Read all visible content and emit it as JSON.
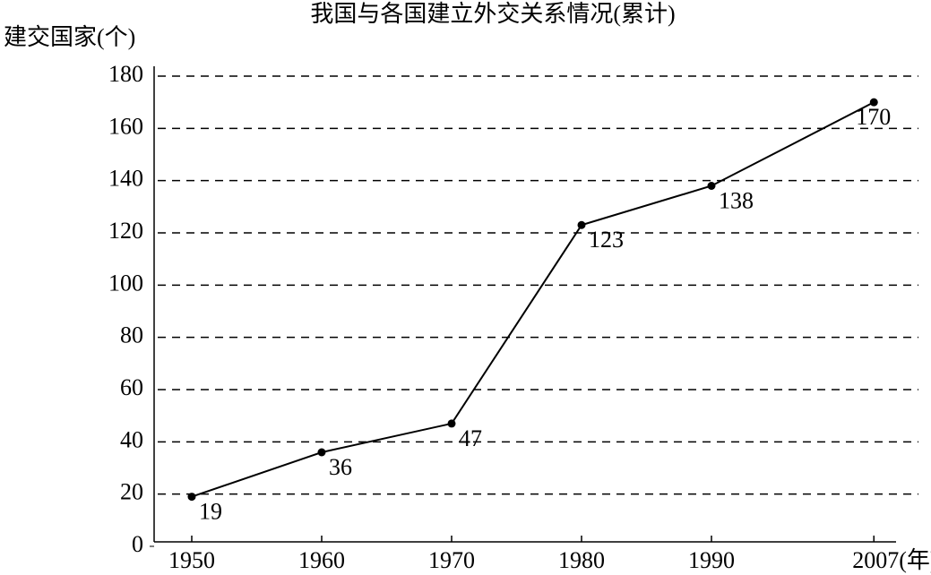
{
  "chart_data": {
    "type": "line",
    "title": "我国与各国建立外交关系情况(累计)",
    "y_label": "建交国家(个)",
    "x_label": "(年)",
    "categories": [
      "1950",
      "1960",
      "1970",
      "1980",
      "1990",
      "2007"
    ],
    "values": [
      19,
      36,
      47,
      123,
      138,
      170
    ],
    "color": "#000000",
    "ylim": [
      0,
      180
    ],
    "yticks": [
      0,
      20,
      40,
      60,
      80,
      100,
      120,
      140,
      160,
      180
    ],
    "grid": true
  }
}
